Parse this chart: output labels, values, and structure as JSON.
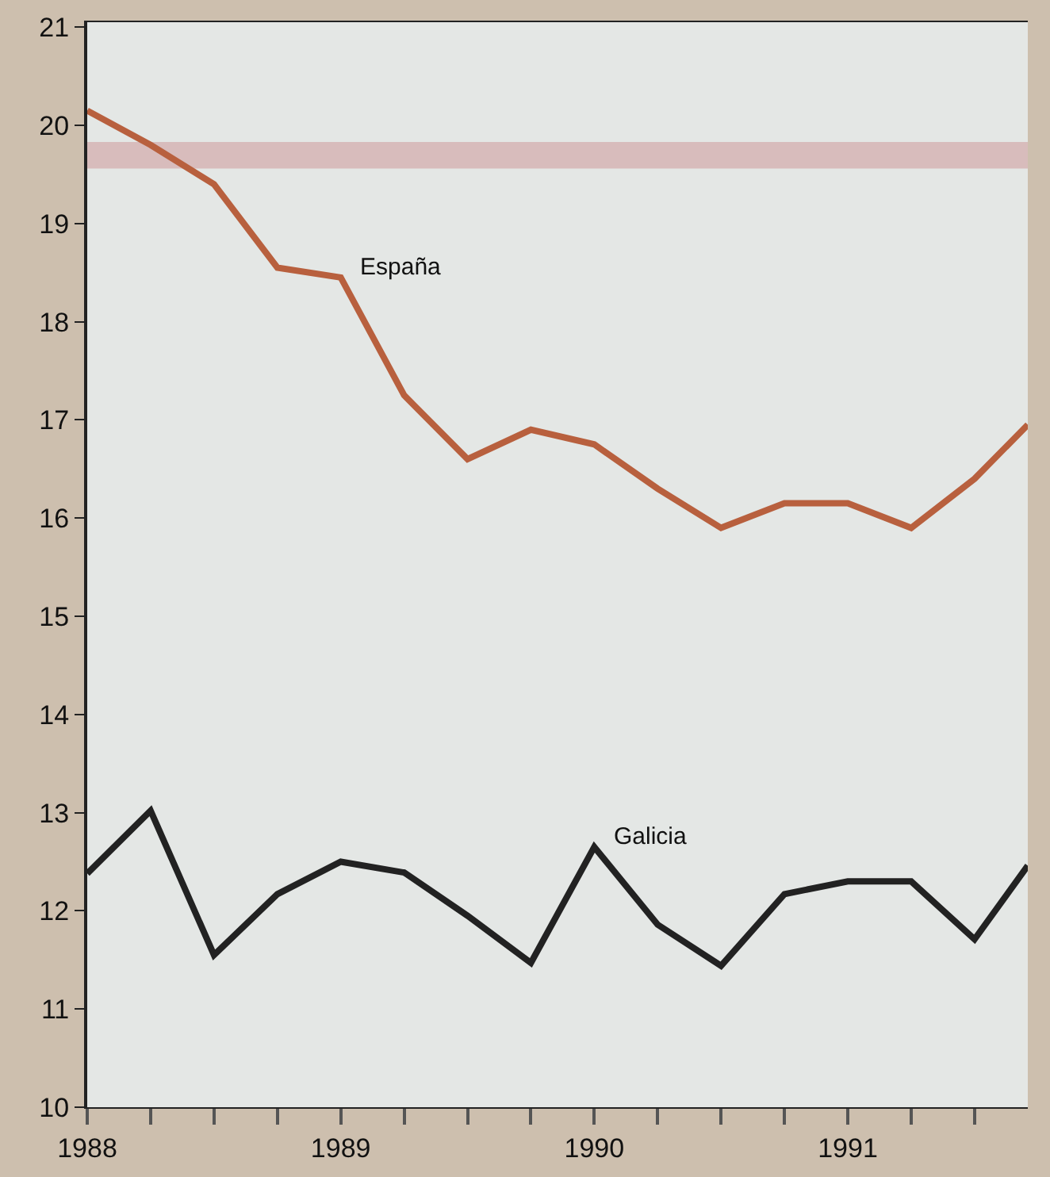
{
  "chart_data": {
    "type": "line",
    "x": [
      1988,
      1988.25,
      1988.5,
      1988.75,
      1989,
      1989.25,
      1989.5,
      1989.75,
      1990,
      1990.25,
      1990.5,
      1990.75,
      1991,
      1991.25,
      1991.5,
      1991.71
    ],
    "series": [
      {
        "name": "España",
        "color": "#b8603e",
        "values": [
          20.15,
          19.8,
          19.4,
          18.55,
          18.45,
          17.25,
          16.6,
          16.9,
          16.75,
          16.3,
          15.9,
          16.15,
          16.15,
          15.9,
          16.4,
          16.95
        ]
      },
      {
        "name": "Galicia",
        "color": "#222222",
        "values": [
          12.38,
          13.02,
          11.55,
          12.17,
          12.5,
          12.39,
          11.95,
          11.47,
          12.65,
          11.86,
          11.44,
          12.17,
          12.3,
          12.3,
          11.71,
          12.46
        ]
      }
    ],
    "xlim": [
      1988,
      1991.71
    ],
    "xticks": [
      1988,
      {
        "value": 1988.25,
        "label": null
      },
      {
        "value": 1988.5,
        "label": null
      },
      {
        "value": 1988.75,
        "label": null
      },
      1989,
      {
        "value": 1989.25,
        "label": null
      },
      {
        "value": 1989.5,
        "label": null
      },
      {
        "value": 1989.75,
        "label": null
      },
      1990,
      {
        "value": 1990.25,
        "label": null
      },
      {
        "value": 1990.5,
        "label": null
      },
      {
        "value": 1990.75,
        "label": null
      },
      1991,
      {
        "value": 1991.25,
        "label": null
      },
      {
        "value": 1991.5,
        "label": null
      }
    ],
    "ylim": [
      10,
      21.05
    ],
    "yticks": [
      10,
      11,
      12,
      13,
      14,
      15,
      16,
      17,
      18,
      19,
      20,
      21
    ],
    "bands": [
      {
        "axis": "y",
        "from": 19.56,
        "to": 19.83,
        "color": "#d8bcbc"
      }
    ],
    "grid": false,
    "legend": false,
    "marker": "none",
    "line_style": "solid"
  }
}
